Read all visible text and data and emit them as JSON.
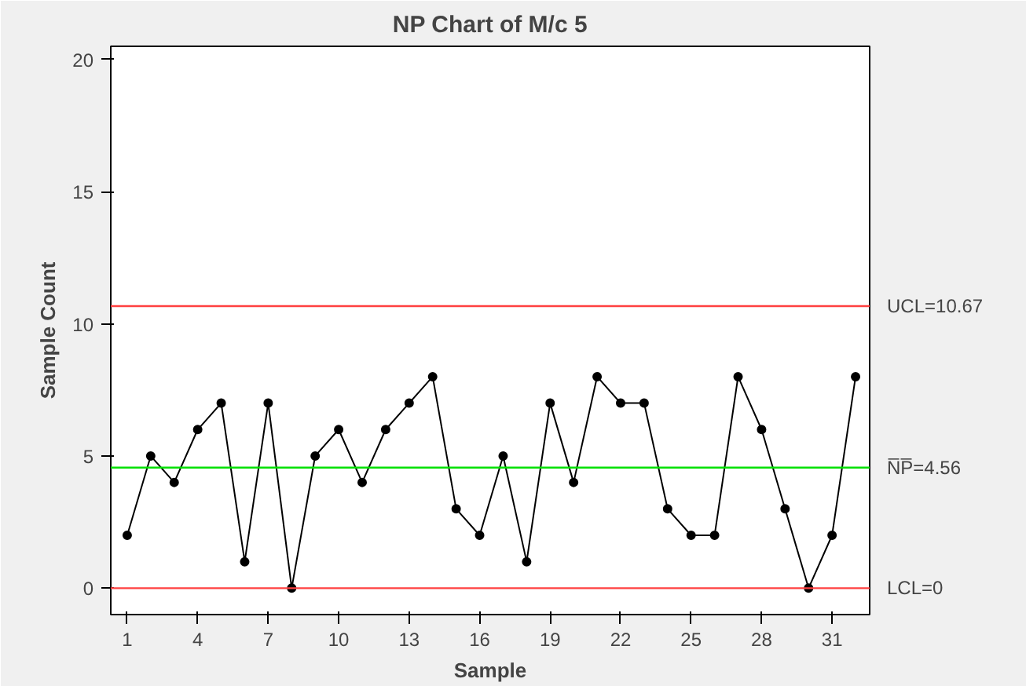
{
  "chart_data": {
    "type": "line",
    "title": "NP Chart of M/c 5",
    "xlabel": "Sample",
    "ylabel": "Sample Count",
    "x": [
      1,
      2,
      3,
      4,
      5,
      6,
      7,
      8,
      9,
      10,
      11,
      12,
      13,
      14,
      15,
      16,
      17,
      18,
      19,
      20,
      21,
      22,
      23,
      24,
      25,
      26,
      27,
      28,
      29,
      30,
      31,
      32
    ],
    "series": [
      {
        "color": "#000000",
        "values": [
          2,
          5,
          4,
          6,
          7,
          1,
          7,
          0,
          5,
          6,
          4,
          6,
          7,
          8,
          3,
          2,
          5,
          1,
          7,
          4,
          8,
          7,
          7,
          3,
          2,
          2,
          8,
          6,
          3,
          0,
          2,
          8
        ]
      }
    ],
    "xlim": [
      0.3,
      32.6
    ],
    "ylim": [
      -1,
      20.5
    ],
    "xticks": [
      1,
      4,
      7,
      10,
      13,
      16,
      19,
      22,
      25,
      28,
      31
    ],
    "yticks": [
      0,
      5,
      10,
      15,
      20
    ],
    "ref_lines": [
      {
        "axis": "y",
        "value": 10.67,
        "label": "UCL=10.67",
        "color": "#ff4040"
      },
      {
        "axis": "y",
        "value": 4.56,
        "label": "N̅P̅=4.56",
        "color": "#00e000"
      },
      {
        "axis": "y",
        "value": 0,
        "label": "LCL=0",
        "color": "#ff4040"
      }
    ],
    "marker": "circle",
    "line_style": "solid",
    "grid": false
  }
}
